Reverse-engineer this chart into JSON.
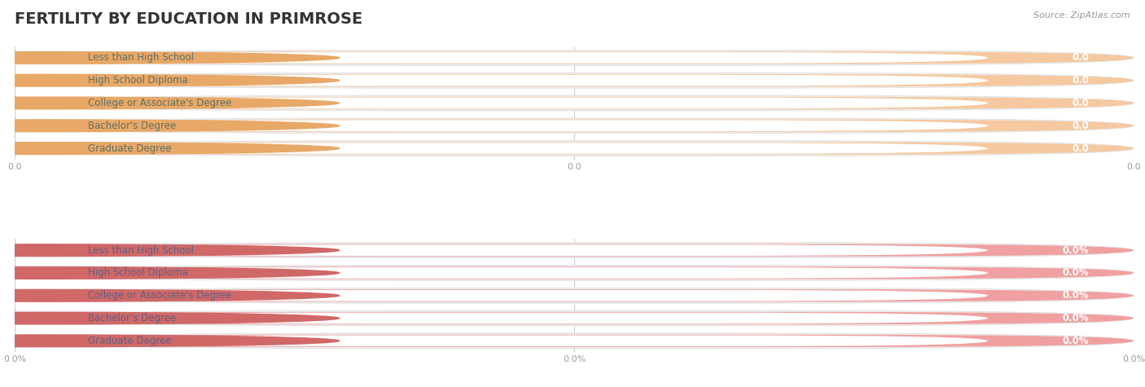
{
  "title": "FERTILITY BY EDUCATION IN PRIMROSE",
  "source": "Source: ZipAtlas.com",
  "categories": [
    "Less than High School",
    "High School Diploma",
    "College or Associate's Degree",
    "Bachelor's Degree",
    "Graduate Degree"
  ],
  "top_values": [
    0.0,
    0.0,
    0.0,
    0.0,
    0.0
  ],
  "bottom_values": [
    0.0,
    0.0,
    0.0,
    0.0,
    0.0
  ],
  "top_bar_color": "#f5c8a0",
  "top_bar_bg_color": "#f5c8a0",
  "top_dot_color": "#e8a868",
  "top_label_color": "#607060",
  "top_value_color": "#d09060",
  "bottom_bar_color": "#f0a0a0",
  "bottom_bar_bg_color": "#f0a0a0",
  "bottom_dot_color": "#d06868",
  "bottom_label_color": "#606080",
  "bottom_value_color": "#c07070",
  "outer_bar_bg": "#eeeeee",
  "white_pill_color": "#ffffff",
  "background_color": "#ffffff",
  "grid_color": "#cccccc",
  "title_color": "#333333",
  "source_color": "#999999",
  "tick_label_color": "#999999",
  "xticks_top_labels": [
    "0.0",
    "0.0",
    "0.0"
  ],
  "xticks_bottom_labels": [
    "0.0%",
    "0.0%",
    "0.0%"
  ],
  "title_fontsize": 14,
  "label_fontsize": 8.5,
  "value_fontsize": 8.5,
  "source_fontsize": 8,
  "tick_fontsize": 8,
  "bar_height": 0.55,
  "outer_bar_height": 0.68
}
